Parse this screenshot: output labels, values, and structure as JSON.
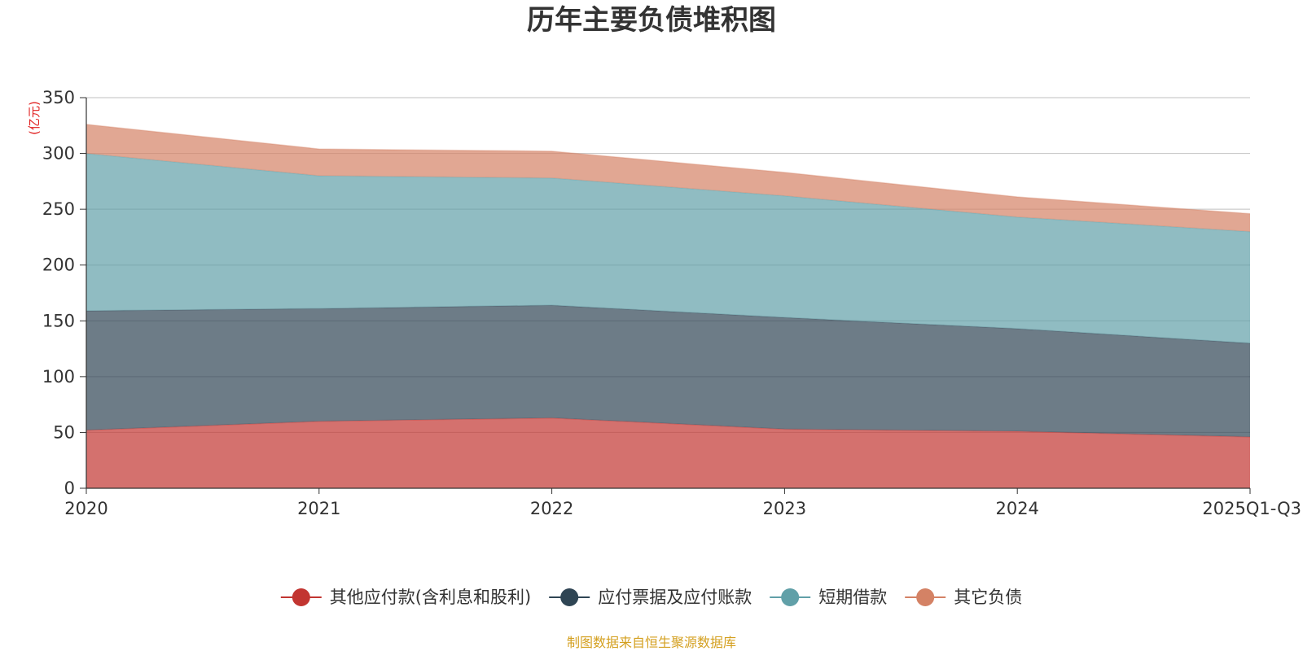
{
  "chart_data": {
    "type": "area",
    "stacked": true,
    "title": "历年主要负债堆积图",
    "unit_label": "(亿元)",
    "categories": [
      "2020",
      "2021",
      "2022",
      "2023",
      "2024",
      "2025Q1-Q3"
    ],
    "ylim": [
      0,
      350
    ],
    "yticks": [
      0,
      50,
      100,
      150,
      200,
      250,
      300,
      350
    ],
    "grid": true,
    "legend_position": "bottom-center",
    "series": [
      {
        "name": "其他应付款(含利息和股利)",
        "color": "#c23531",
        "values": [
          52,
          60,
          63,
          53,
          51,
          46
        ]
      },
      {
        "name": "应付票据及应付账款",
        "color": "#2f4554",
        "values": [
          107,
          101,
          101,
          100,
          92,
          84
        ]
      },
      {
        "name": "短期借款",
        "color": "#61a0a8",
        "values": [
          141,
          119,
          114,
          109,
          100,
          100
        ]
      },
      {
        "name": "其它负债",
        "color": "#d48265",
        "values": [
          26,
          24,
          24,
          21,
          18,
          16
        ]
      }
    ]
  },
  "footer": {
    "source": "制图数据来自恒生聚源数据库"
  }
}
